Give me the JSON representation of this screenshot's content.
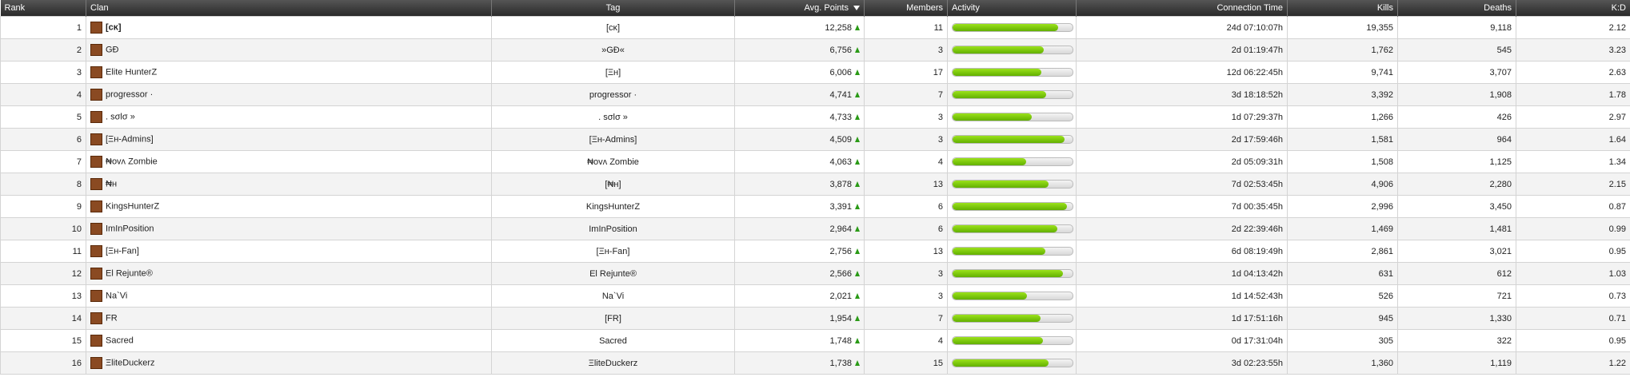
{
  "table": {
    "columns": [
      "Rank",
      "Clan",
      "Tag",
      "Avg. Points",
      "Members",
      "Activity",
      "Connection Time",
      "Kills",
      "Deaths",
      "K:D"
    ],
    "rows": [
      [
        1,
        "[cĸ]",
        "[cĸ]",
        "12,258",
        11,
        88,
        "24d 07:10:07h",
        "19,355",
        "9,118",
        "2.12"
      ],
      [
        2,
        "GÐ",
        "»GÐ«",
        "6,756",
        3,
        76,
        "2d 01:19:47h",
        "1,762",
        "545",
        "3.23"
      ],
      [
        3,
        "Elite HunterZ",
        "[Ξʜ]",
        "6,006",
        17,
        74,
        "12d 06:22:45h",
        "9,741",
        "3,707",
        "2.63"
      ],
      [
        4,
        "progressor ·",
        "progressor ·",
        "4,741",
        7,
        78,
        "3d 18:18:52h",
        "3,392",
        "1,908",
        "1.78"
      ],
      [
        5,
        ". sσlσ »",
        ". sσlσ »",
        "4,733",
        3,
        66,
        "1d 07:29:37h",
        "1,266",
        "426",
        "2.97"
      ],
      [
        6,
        "[Ξʜ-Admins]",
        "[Ξʜ-Admins]",
        "4,509",
        3,
        93,
        "2d 17:59:46h",
        "1,581",
        "964",
        "1.64"
      ],
      [
        7,
        "₦ovᴧ Zombie",
        "₦ovᴧ Zombie",
        "4,063",
        4,
        61,
        "2d 05:09:31h",
        "1,508",
        "1,125",
        "1.34"
      ],
      [
        8,
        "₦ʜ",
        "[₦ʜ]",
        "3,878",
        13,
        80,
        "7d 02:53:45h",
        "4,906",
        "2,280",
        "2.15"
      ],
      [
        9,
        "KingsHunterZ",
        "KingsHunterZ",
        "3,391",
        6,
        95,
        "7d 00:35:45h",
        "2,996",
        "3,450",
        "0.87"
      ],
      [
        10,
        "ImInPosition",
        "ImInPosition",
        "2,964",
        6,
        87,
        "2d 22:39:46h",
        "1,469",
        "1,481",
        "0.99"
      ],
      [
        11,
        "[Ξʜ-Fan]",
        "[Ξʜ-Fan]",
        "2,756",
        13,
        77,
        "6d 08:19:49h",
        "2,861",
        "3,021",
        "0.95"
      ],
      [
        12,
        "El Rejunte®",
        "El Rejunte®",
        "2,566",
        3,
        92,
        "1d 04:13:42h",
        "631",
        "612",
        "1.03"
      ],
      [
        13,
        "Na`Vi",
        "Na`Vi",
        "2,021",
        3,
        62,
        "1d 14:52:43h",
        "526",
        "721",
        "0.73"
      ],
      [
        14,
        "FR",
        "[FR]",
        "1,954",
        7,
        73,
        "1d 17:51:16h",
        "945",
        "1,330",
        "0.71"
      ],
      [
        15,
        "Sacred",
        "Sacred",
        "1,748",
        4,
        75,
        "0d 17:31:04h",
        "305",
        "322",
        "0.95"
      ],
      [
        16,
        "ΞliteDuckerz",
        "ΞliteDuckerz",
        "1,738",
        15,
        80,
        "3d 02:23:55h",
        "1,360",
        "1,119",
        "1.22"
      ]
    ]
  }
}
